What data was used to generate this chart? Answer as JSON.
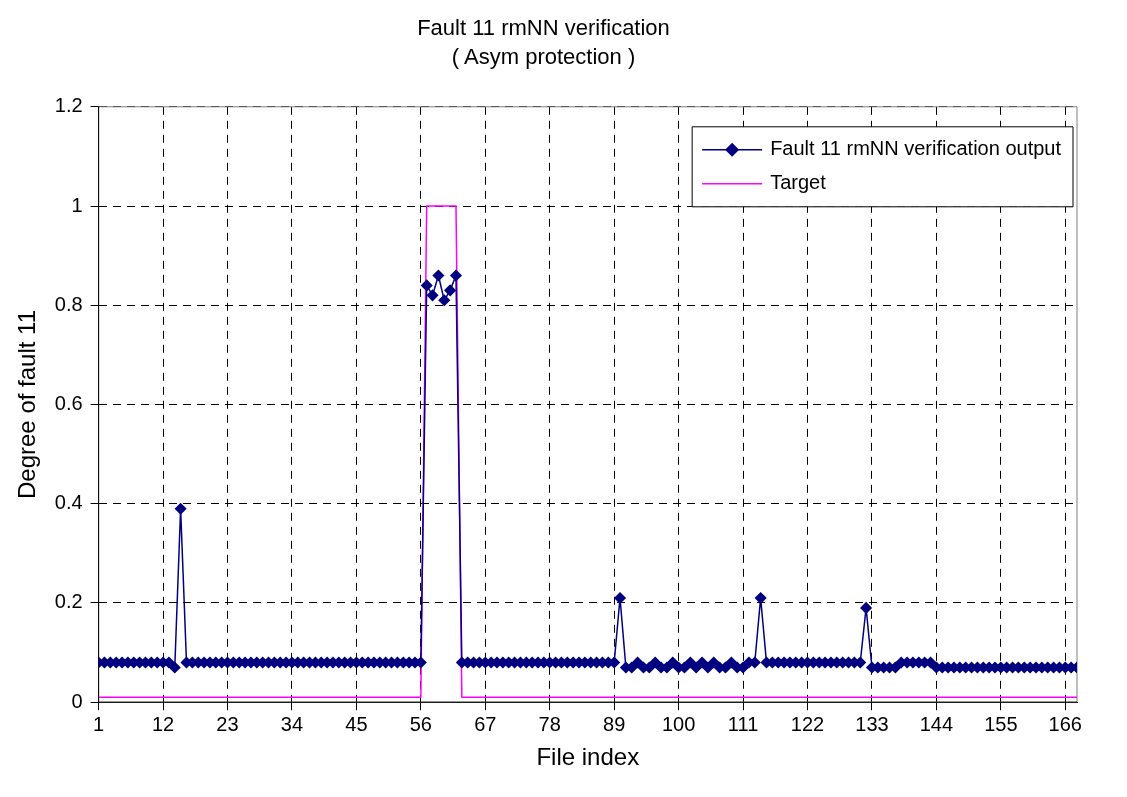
{
  "chart_data": {
    "type": "line",
    "title": "Fault 11 rmNN verification",
    "subtitle": "( Asym protection )",
    "xlabel": "File index",
    "ylabel": "Degree of fault 11",
    "x": [
      1,
      2,
      3,
      4,
      5,
      6,
      7,
      8,
      9,
      10,
      11,
      12,
      13,
      14,
      15,
      16,
      17,
      18,
      19,
      20,
      21,
      22,
      23,
      24,
      25,
      26,
      27,
      28,
      29,
      30,
      31,
      32,
      33,
      34,
      35,
      36,
      37,
      38,
      39,
      40,
      41,
      42,
      43,
      44,
      45,
      46,
      47,
      48,
      49,
      50,
      51,
      52,
      53,
      54,
      55,
      56,
      57,
      58,
      59,
      60,
      61,
      62,
      63,
      64,
      65,
      66,
      67,
      68,
      69,
      70,
      71,
      72,
      73,
      74,
      75,
      76,
      77,
      78,
      79,
      80,
      81,
      82,
      83,
      84,
      85,
      86,
      87,
      88,
      89,
      90,
      91,
      92,
      93,
      94,
      95,
      96,
      97,
      98,
      99,
      100,
      101,
      102,
      103,
      104,
      105,
      106,
      107,
      108,
      109,
      110,
      111,
      112,
      113,
      114,
      115,
      116,
      117,
      118,
      119,
      120,
      121,
      122,
      123,
      124,
      125,
      126,
      127,
      128,
      129,
      130,
      131,
      132,
      133,
      134,
      135,
      136,
      137,
      138,
      139,
      140,
      141,
      142,
      143,
      144,
      145,
      146,
      147,
      148,
      149,
      150,
      151,
      152,
      153,
      154,
      155,
      156,
      157,
      158,
      159,
      160,
      161,
      162,
      163,
      164,
      165,
      166,
      167,
      168
    ],
    "series": [
      {
        "name": "Fault 11 rmNN verification output",
        "color": "#000080",
        "marker": "diamond",
        "values": [
          0.08,
          0.08,
          0.08,
          0.08,
          0.08,
          0.08,
          0.08,
          0.08,
          0.08,
          0.08,
          0.08,
          0.08,
          0.08,
          0.07,
          0.39,
          0.08,
          0.08,
          0.08,
          0.08,
          0.08,
          0.08,
          0.08,
          0.08,
          0.08,
          0.08,
          0.08,
          0.08,
          0.08,
          0.08,
          0.08,
          0.08,
          0.08,
          0.08,
          0.08,
          0.08,
          0.08,
          0.08,
          0.08,
          0.08,
          0.08,
          0.08,
          0.08,
          0.08,
          0.08,
          0.08,
          0.08,
          0.08,
          0.08,
          0.08,
          0.08,
          0.08,
          0.08,
          0.08,
          0.08,
          0.08,
          0.08,
          0.84,
          0.82,
          0.86,
          0.81,
          0.83,
          0.86,
          0.08,
          0.08,
          0.08,
          0.08,
          0.08,
          0.08,
          0.08,
          0.08,
          0.08,
          0.08,
          0.08,
          0.08,
          0.08,
          0.08,
          0.08,
          0.08,
          0.08,
          0.08,
          0.08,
          0.08,
          0.08,
          0.08,
          0.08,
          0.08,
          0.08,
          0.08,
          0.08,
          0.21,
          0.07,
          0.07,
          0.08,
          0.07,
          0.07,
          0.08,
          0.07,
          0.07,
          0.08,
          0.07,
          0.07,
          0.08,
          0.07,
          0.08,
          0.07,
          0.08,
          0.07,
          0.07,
          0.08,
          0.07,
          0.07,
          0.08,
          0.08,
          0.21,
          0.08,
          0.08,
          0.08,
          0.08,
          0.08,
          0.08,
          0.08,
          0.08,
          0.08,
          0.08,
          0.08,
          0.08,
          0.08,
          0.08,
          0.08,
          0.08,
          0.08,
          0.19,
          0.07,
          0.07,
          0.07,
          0.07,
          0.07,
          0.08,
          0.08,
          0.08,
          0.08,
          0.08,
          0.08,
          0.07,
          0.07,
          0.07,
          0.07,
          0.07,
          0.07,
          0.07,
          0.07,
          0.07,
          0.07,
          0.07,
          0.07,
          0.07,
          0.07,
          0.07,
          0.07,
          0.07,
          0.07,
          0.07,
          0.07,
          0.07,
          0.07,
          0.07,
          0.07,
          0.07
        ]
      },
      {
        "name": "Target",
        "color": "#ff00ff",
        "marker": "none",
        "values": [
          0.01,
          0.01,
          0.01,
          0.01,
          0.01,
          0.01,
          0.01,
          0.01,
          0.01,
          0.01,
          0.01,
          0.01,
          0.01,
          0.01,
          0.01,
          0.01,
          0.01,
          0.01,
          0.01,
          0.01,
          0.01,
          0.01,
          0.01,
          0.01,
          0.01,
          0.01,
          0.01,
          0.01,
          0.01,
          0.01,
          0.01,
          0.01,
          0.01,
          0.01,
          0.01,
          0.01,
          0.01,
          0.01,
          0.01,
          0.01,
          0.01,
          0.01,
          0.01,
          0.01,
          0.01,
          0.01,
          0.01,
          0.01,
          0.01,
          0.01,
          0.01,
          0.01,
          0.01,
          0.01,
          0.01,
          0.01,
          1,
          1,
          1,
          1,
          1,
          1,
          0.01,
          0.01,
          0.01,
          0.01,
          0.01,
          0.01,
          0.01,
          0.01,
          0.01,
          0.01,
          0.01,
          0.01,
          0.01,
          0.01,
          0.01,
          0.01,
          0.01,
          0.01,
          0.01,
          0.01,
          0.01,
          0.01,
          0.01,
          0.01,
          0.01,
          0.01,
          0.01,
          0.01,
          0.01,
          0.01,
          0.01,
          0.01,
          0.01,
          0.01,
          0.01,
          0.01,
          0.01,
          0.01,
          0.01,
          0.01,
          0.01,
          0.01,
          0.01,
          0.01,
          0.01,
          0.01,
          0.01,
          0.01,
          0.01,
          0.01,
          0.01,
          0.01,
          0.01,
          0.01,
          0.01,
          0.01,
          0.01,
          0.01,
          0.01,
          0.01,
          0.01,
          0.01,
          0.01,
          0.01,
          0.01,
          0.01,
          0.01,
          0.01,
          0.01,
          0.01,
          0.01,
          0.01,
          0.01,
          0.01,
          0.01,
          0.01,
          0.01,
          0.01,
          0.01,
          0.01,
          0.01,
          0.01,
          0.01,
          0.01,
          0.01,
          0.01,
          0.01,
          0.01,
          0.01,
          0.01,
          0.01,
          0.01,
          0.01,
          0.01,
          0.01,
          0.01,
          0.01,
          0.01,
          0.01,
          0.01,
          0.01,
          0.01,
          0.01,
          0.01,
          0.01,
          0.01
        ]
      }
    ],
    "xlim": [
      1,
      168
    ],
    "xticks": [
      1,
      12,
      23,
      34,
      45,
      56,
      67,
      78,
      89,
      100,
      111,
      122,
      133,
      144,
      155,
      166
    ],
    "ylim": [
      0,
      1.2
    ],
    "yticks": [
      0,
      0.2,
      0.4,
      0.6,
      0.8,
      1,
      1.2
    ],
    "grid": true,
    "legend": "top right",
    "line_style": "solid"
  }
}
